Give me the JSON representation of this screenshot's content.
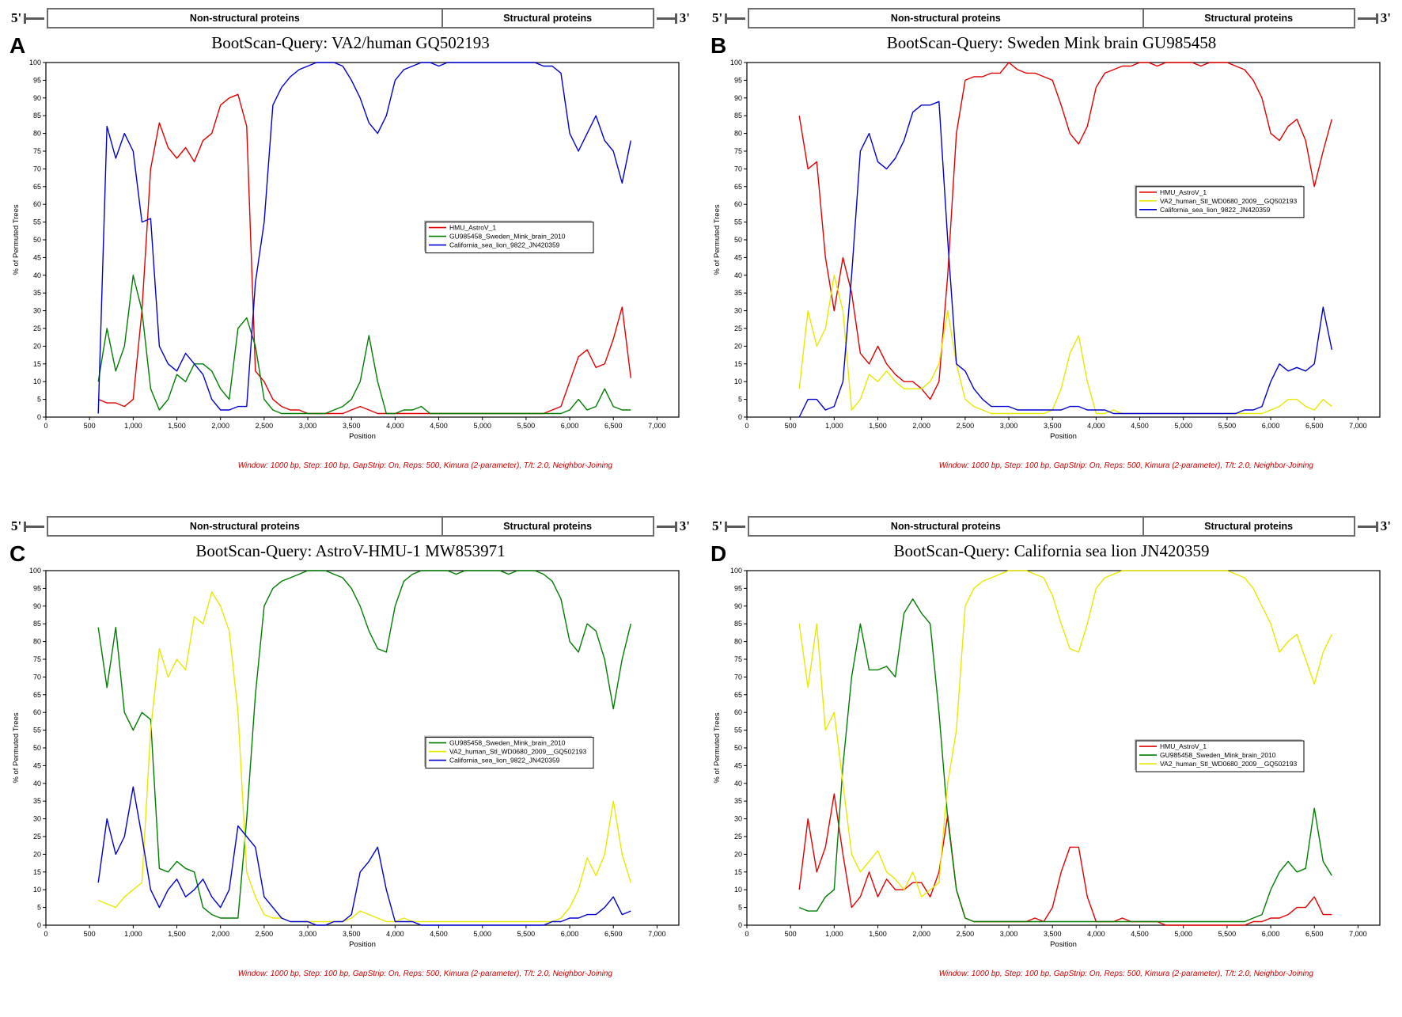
{
  "figure": {
    "panel_letters": [
      "A",
      "B",
      "C",
      "D"
    ],
    "genome_map": {
      "five_prime_label": "5'",
      "three_prime_label": "3'",
      "nonstructural_label": "Non-structural proteins",
      "structural_label": "Structural proteins"
    },
    "settings_caption": "Window: 1000 bp, Step: 100 bp, GapStrip: On, Reps: 500, Kimura (2-parameter), T/t: 2.0, Neighbor-Joining"
  },
  "chart_data": [
    {
      "type": "line",
      "panel": "A",
      "title": "BootScan-Query: VA2/human GQ502193",
      "xlabel": "Position",
      "ylabel": "% of Permuted Trees",
      "xlim": [
        0,
        7250
      ],
      "ylim": [
        0,
        100
      ],
      "xtick_step": 500,
      "xtick_max": 7000,
      "ytick_step": 5,
      "x_start": 600,
      "x_step": 100,
      "grid": false,
      "legend_position": "inside-right-center",
      "series": [
        {
          "name": "HMU_AstroV_1",
          "color": "#e10000",
          "values": [
            5,
            4,
            4,
            3,
            5,
            30,
            70,
            83,
            76,
            73,
            76,
            72,
            78,
            80,
            88,
            90,
            91,
            82,
            13,
            10,
            5,
            3,
            2,
            2,
            1,
            1,
            1,
            1,
            1,
            2,
            3,
            2,
            1,
            1,
            1,
            1,
            1,
            1,
            1,
            1,
            1,
            1,
            1,
            1,
            1,
            1,
            1,
            1,
            1,
            1,
            1,
            1,
            2,
            3,
            10,
            17,
            19,
            14,
            15,
            22,
            31,
            11
          ]
        },
        {
          "name": "GU985458_Sweden_Mink_brain_2010",
          "color": "#007d00",
          "values": [
            10,
            25,
            13,
            20,
            40,
            30,
            8,
            2,
            5,
            12,
            10,
            15,
            15,
            13,
            8,
            5,
            25,
            28,
            20,
            5,
            2,
            1,
            1,
            1,
            1,
            1,
            1,
            2,
            3,
            5,
            10,
            23,
            10,
            1,
            1,
            2,
            2,
            3,
            1,
            1,
            1,
            1,
            1,
            1,
            1,
            1,
            1,
            1,
            1,
            1,
            1,
            1,
            1,
            1,
            2,
            5,
            2,
            3,
            8,
            3,
            2,
            2
          ]
        },
        {
          "name": "California_sea_lion_9822_JN420359",
          "color": "#0000d0",
          "values": [
            1,
            82,
            73,
            80,
            75,
            55,
            56,
            20,
            15,
            13,
            18,
            15,
            12,
            5,
            2,
            2,
            3,
            3,
            38,
            55,
            88,
            93,
            96,
            98,
            99,
            100,
            100,
            100,
            99,
            95,
            90,
            83,
            80,
            85,
            95,
            98,
            99,
            100,
            100,
            99,
            100,
            100,
            100,
            100,
            100,
            100,
            100,
            100,
            100,
            100,
            100,
            99,
            99,
            97,
            80,
            75,
            80,
            85,
            78,
            75,
            66,
            78
          ]
        }
      ]
    },
    {
      "type": "line",
      "panel": "B",
      "title": "BootScan-Query: Sweden Mink brain GU985458",
      "xlabel": "Position",
      "ylabel": "% of Permuted Trees",
      "xlim": [
        0,
        7250
      ],
      "ylim": [
        0,
        100
      ],
      "xtick_step": 500,
      "xtick_max": 7000,
      "ytick_step": 5,
      "x_start": 600,
      "x_step": 100,
      "grid": false,
      "legend_position": "inside-right-upper",
      "series": [
        {
          "name": "HMU_AstroV_1",
          "color": "#e10000",
          "values": [
            85,
            70,
            72,
            45,
            30,
            45,
            35,
            18,
            15,
            20,
            15,
            12,
            10,
            10,
            8,
            5,
            10,
            40,
            80,
            95,
            96,
            96,
            97,
            97,
            100,
            98,
            97,
            97,
            96,
            95,
            88,
            80,
            77,
            82,
            93,
            97,
            98,
            99,
            99,
            100,
            100,
            99,
            100,
            100,
            100,
            100,
            99,
            100,
            100,
            100,
            99,
            98,
            95,
            90,
            80,
            78,
            82,
            84,
            78,
            65,
            75,
            84
          ]
        },
        {
          "name": "VA2_human_Stl_WD0680_2009__GQ502193",
          "color": "#e8e800",
          "values": [
            8,
            30,
            20,
            25,
            40,
            30,
            2,
            5,
            12,
            10,
            13,
            10,
            8,
            8,
            8,
            10,
            15,
            30,
            15,
            5,
            3,
            2,
            1,
            1,
            1,
            1,
            1,
            1,
            1,
            2,
            8,
            18,
            23,
            10,
            1,
            1,
            2,
            1,
            1,
            1,
            1,
            1,
            1,
            1,
            1,
            1,
            1,
            1,
            1,
            1,
            1,
            1,
            1,
            1,
            2,
            3,
            5,
            5,
            3,
            2,
            5,
            3
          ]
        },
        {
          "name": "California_sea_lion_9822_JN420359",
          "color": "#0000d0",
          "values": [
            0,
            5,
            5,
            2,
            3,
            10,
            40,
            75,
            80,
            72,
            70,
            73,
            78,
            86,
            88,
            88,
            89,
            50,
            15,
            13,
            8,
            5,
            3,
            3,
            3,
            2,
            2,
            2,
            2,
            2,
            2,
            3,
            3,
            2,
            2,
            2,
            1,
            1,
            1,
            1,
            1,
            1,
            1,
            1,
            1,
            1,
            1,
            1,
            1,
            1,
            1,
            2,
            2,
            3,
            10,
            15,
            13,
            14,
            13,
            15,
            31,
            19
          ]
        }
      ]
    },
    {
      "type": "line",
      "panel": "C",
      "title": "BootScan-Query: AstroV-HMU-1 MW853971",
      "xlabel": "Position",
      "ylabel": "% of Permuted Trees",
      "xlim": [
        0,
        7250
      ],
      "ylim": [
        0,
        100
      ],
      "xtick_step": 500,
      "xtick_max": 7000,
      "ytick_step": 5,
      "x_start": 600,
      "x_step": 100,
      "grid": false,
      "legend_position": "inside-right-center",
      "series": [
        {
          "name": "GU985458_Sweden_Mink_brain_2010",
          "color": "#007d00",
          "values": [
            84,
            67,
            84,
            60,
            55,
            60,
            58,
            16,
            15,
            18,
            16,
            15,
            5,
            3,
            2,
            2,
            2,
            30,
            65,
            90,
            95,
            97,
            98,
            99,
            100,
            100,
            100,
            99,
            98,
            95,
            90,
            83,
            78,
            77,
            90,
            97,
            99,
            100,
            100,
            100,
            100,
            99,
            100,
            100,
            100,
            100,
            100,
            99,
            100,
            100,
            100,
            99,
            97,
            92,
            80,
            77,
            85,
            83,
            75,
            61,
            75,
            85
          ]
        },
        {
          "name": "VA2_human_Stl_WD0680_2009__GQ502193",
          "color": "#e8e800",
          "values": [
            7,
            6,
            5,
            8,
            10,
            12,
            55,
            78,
            70,
            75,
            72,
            87,
            85,
            94,
            90,
            83,
            60,
            15,
            8,
            3,
            2,
            2,
            1,
            1,
            1,
            1,
            1,
            1,
            1,
            2,
            4,
            3,
            2,
            1,
            1,
            2,
            1,
            1,
            1,
            1,
            1,
            1,
            1,
            1,
            1,
            1,
            1,
            1,
            1,
            1,
            1,
            1,
            1,
            2,
            5,
            10,
            19,
            14,
            20,
            35,
            20,
            12
          ]
        },
        {
          "name": "California_sea_lion_9822_JN420359",
          "color": "#0000d0",
          "values": [
            12,
            30,
            20,
            25,
            39,
            25,
            10,
            5,
            10,
            13,
            8,
            10,
            13,
            8,
            5,
            10,
            28,
            25,
            22,
            8,
            5,
            2,
            1,
            1,
            1,
            0,
            0,
            1,
            1,
            3,
            15,
            18,
            22,
            10,
            1,
            1,
            1,
            0,
            0,
            0,
            0,
            0,
            0,
            0,
            0,
            0,
            0,
            0,
            0,
            0,
            0,
            0,
            1,
            1,
            2,
            2,
            3,
            3,
            5,
            8,
            3,
            4
          ]
        }
      ]
    },
    {
      "type": "line",
      "panel": "D",
      "title": "BootScan-Query: California sea lion JN420359",
      "xlabel": "Position",
      "ylabel": "% of Permuted Trees",
      "xlim": [
        0,
        7250
      ],
      "ylim": [
        0,
        100
      ],
      "xtick_step": 500,
      "xtick_max": 7000,
      "ytick_step": 5,
      "x_start": 600,
      "x_step": 100,
      "grid": false,
      "legend_position": "inside-right-center",
      "series": [
        {
          "name": "HMU_AstroV_1",
          "color": "#e10000",
          "values": [
            10,
            30,
            15,
            22,
            37,
            20,
            5,
            8,
            15,
            8,
            13,
            10,
            10,
            12,
            12,
            8,
            15,
            31,
            10,
            2,
            1,
            1,
            1,
            1,
            1,
            1,
            1,
            2,
            1,
            5,
            15,
            22,
            22,
            8,
            1,
            1,
            1,
            2,
            1,
            1,
            1,
            1,
            0,
            0,
            0,
            0,
            0,
            0,
            0,
            0,
            0,
            0,
            1,
            1,
            2,
            2,
            3,
            5,
            5,
            8,
            3,
            3
          ]
        },
        {
          "name": "GU985458_Sweden_Mink_brain_2010",
          "color": "#007d00",
          "values": [
            5,
            4,
            4,
            8,
            10,
            45,
            70,
            85,
            72,
            72,
            73,
            70,
            88,
            92,
            88,
            85,
            60,
            30,
            10,
            2,
            1,
            1,
            1,
            1,
            1,
            1,
            1,
            1,
            1,
            1,
            1,
            1,
            1,
            1,
            1,
            1,
            1,
            1,
            1,
            1,
            1,
            1,
            1,
            1,
            1,
            1,
            1,
            1,
            1,
            1,
            1,
            1,
            2,
            3,
            10,
            15,
            18,
            15,
            16,
            33,
            18,
            14
          ]
        },
        {
          "name": "VA2_human_Stl_WD0680_2009__GQ502193",
          "color": "#e8e800",
          "values": [
            85,
            67,
            85,
            55,
            60,
            40,
            20,
            15,
            18,
            21,
            15,
            13,
            10,
            15,
            8,
            10,
            12,
            40,
            55,
            90,
            95,
            97,
            98,
            99,
            100,
            100,
            100,
            99,
            98,
            93,
            85,
            78,
            77,
            85,
            95,
            98,
            99,
            100,
            100,
            100,
            100,
            100,
            100,
            100,
            100,
            100,
            100,
            100,
            100,
            100,
            99,
            98,
            95,
            90,
            85,
            77,
            80,
            82,
            75,
            68,
            77,
            82
          ]
        }
      ]
    }
  ]
}
